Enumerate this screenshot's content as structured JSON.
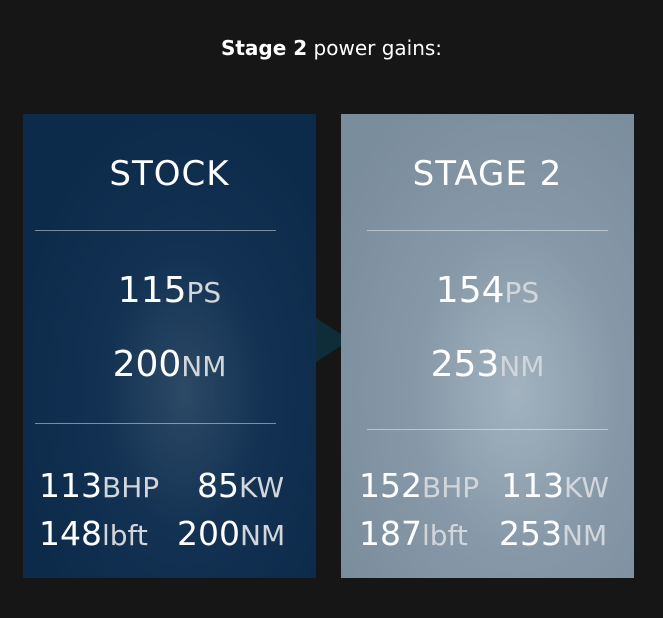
{
  "heading": {
    "bold": "Stage 2",
    "rest": " power gains:"
  },
  "stock": {
    "title": "STOCK",
    "ps": "115",
    "ps_unit": "PS",
    "nm": "200",
    "nm_unit": "NM",
    "bhp": "113",
    "bhp_unit": "BHP",
    "kw": "85",
    "kw_unit": "KW",
    "lbft": "148",
    "lbft_unit": "lbft",
    "nm2": "200",
    "nm2_unit": "NM"
  },
  "stage2": {
    "title": "STAGE 2",
    "ps": "154",
    "ps_unit": "PS",
    "nm": "253",
    "nm_unit": "NM",
    "bhp": "152",
    "bhp_unit": "BHP",
    "kw": "113",
    "kw_unit": "KW",
    "lbft": "187",
    "lbft_unit": "lbft",
    "nm2": "253",
    "nm2_unit": "NM"
  },
  "colors": {
    "background": "#161616",
    "stock_panel": "#0c2a4a",
    "stage2_panel": "#7a8d9d",
    "arrow": "#0f2d38"
  }
}
